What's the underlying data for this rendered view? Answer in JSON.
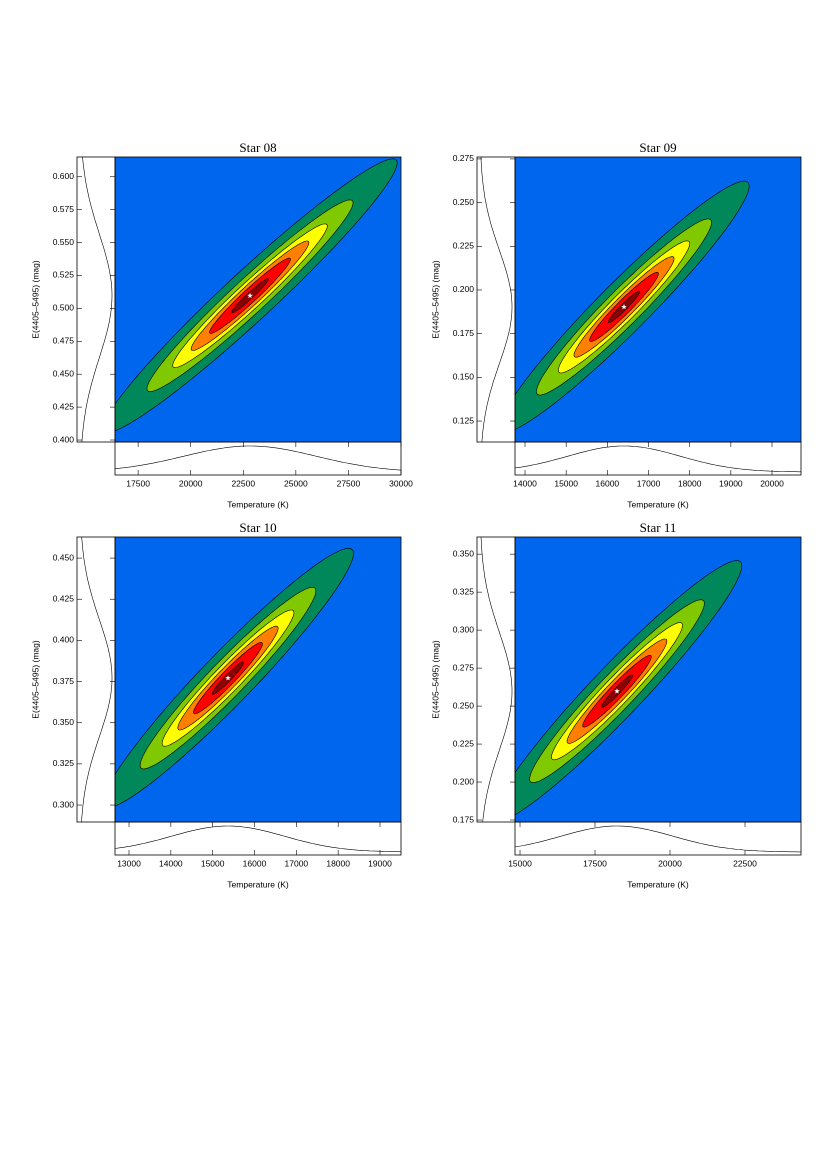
{
  "chart_data": [
    {
      "type": "contour",
      "title": "Star 08",
      "xlabel": "Temperature (K)",
      "ylabel": "E(4405–5495) (mag)",
      "xlim": [
        16400,
        30000
      ],
      "ylim": [
        0.3985,
        0.615
      ],
      "xticks": [
        17500,
        20000,
        22500,
        25000,
        27500,
        30000
      ],
      "yticks": [
        {
          "value": 0.4,
          "label": "0.400"
        },
        {
          "value": 0.425,
          "label": "0.425"
        },
        {
          "value": 0.45,
          "label": "0.450"
        },
        {
          "value": 0.475,
          "label": "0.475"
        },
        {
          "value": 0.5,
          "label": "0.500"
        },
        {
          "value": 0.525,
          "label": "0.525"
        },
        {
          "value": 0.55,
          "label": "0.550"
        },
        {
          "value": 0.575,
          "label": "0.575"
        },
        {
          "value": 0.6,
          "label": "0.600"
        }
      ],
      "best_x": 22820,
      "best_y": 0.5096,
      "sigma_x": 1750,
      "sigma_y": 0.026,
      "correlation": 0.97,
      "background_color": "#0066ee",
      "contour_colors": [
        "#00875a",
        "#80c800",
        "#ffff00",
        "#ff8000",
        "#ff0000",
        "#8b0000"
      ]
    },
    {
      "type": "contour",
      "title": "Star 09",
      "xlabel": "Temperature (K)",
      "ylabel": "E(4405–5495) (mag)",
      "xlim": [
        13757,
        20704
      ],
      "ylim": [
        0.113,
        0.2761
      ],
      "xticks": [
        14000,
        15000,
        16000,
        17000,
        18000,
        19000,
        20000
      ],
      "yticks": [
        {
          "value": 0.125,
          "label": "0.125"
        },
        {
          "value": 0.15,
          "label": "0.150"
        },
        {
          "value": 0.175,
          "label": "0.175"
        },
        {
          "value": 0.2,
          "label": "0.200"
        },
        {
          "value": 0.225,
          "label": "0.225"
        },
        {
          "value": 0.25,
          "label": "0.250"
        },
        {
          "value": 0.275,
          "label": "0.275"
        }
      ],
      "best_x": 16405,
      "best_y": 0.1903,
      "sigma_x": 760,
      "sigma_y": 0.018,
      "correlation": 0.96,
      "background_color": "#0066ee",
      "contour_colors": [
        "#00875a",
        "#80c800",
        "#ffff00",
        "#ff8000",
        "#ff0000",
        "#8b0000"
      ]
    },
    {
      "type": "contour",
      "title": "Star 10",
      "xlabel": "Temperature (K)",
      "ylabel": "E(4405–5495) (mag)",
      "xlim": [
        12665,
        19502
      ],
      "ylim": [
        0.2897,
        0.4628
      ],
      "xticks": [
        13000,
        14000,
        15000,
        16000,
        17000,
        18000,
        19000
      ],
      "yticks": [
        {
          "value": 0.3,
          "label": "0.300"
        },
        {
          "value": 0.325,
          "label": "0.325"
        },
        {
          "value": 0.35,
          "label": "0.350"
        },
        {
          "value": 0.375,
          "label": "0.375"
        },
        {
          "value": 0.4,
          "label": "0.400"
        },
        {
          "value": 0.425,
          "label": "0.425"
        },
        {
          "value": 0.45,
          "label": "0.450"
        }
      ],
      "best_x": 15366,
      "best_y": 0.3771,
      "sigma_x": 750,
      "sigma_y": 0.0197,
      "correlation": 0.96,
      "background_color": "#0066ee",
      "contour_colors": [
        "#00875a",
        "#80c800",
        "#ffff00",
        "#ff8000",
        "#ff0000",
        "#8b0000"
      ]
    },
    {
      "type": "contour",
      "title": "Star 11",
      "xlabel": "Temperature (K)",
      "ylabel": "E(4405–5495) (mag)",
      "xlim": [
        14833,
        24367
      ],
      "ylim": [
        0.1737,
        0.3613
      ],
      "xticks": [
        15000,
        17500,
        20000,
        22500
      ],
      "yticks": [
        {
          "value": 0.175,
          "label": "0.175"
        },
        {
          "value": 0.2,
          "label": "0.200"
        },
        {
          "value": 0.225,
          "label": "0.225"
        },
        {
          "value": 0.25,
          "label": "0.250"
        },
        {
          "value": 0.275,
          "label": "0.275"
        },
        {
          "value": 0.3,
          "label": "0.300"
        },
        {
          "value": 0.325,
          "label": "0.325"
        },
        {
          "value": 0.35,
          "label": "0.350"
        }
      ],
      "best_x": 18233,
      "best_y": 0.2598,
      "sigma_x": 1040,
      "sigma_y": 0.0215,
      "correlation": 0.96,
      "background_color": "#0066ee",
      "contour_colors": [
        "#00875a",
        "#80c800",
        "#ffff00",
        "#ff8000",
        "#ff0000",
        "#8b0000"
      ]
    }
  ]
}
